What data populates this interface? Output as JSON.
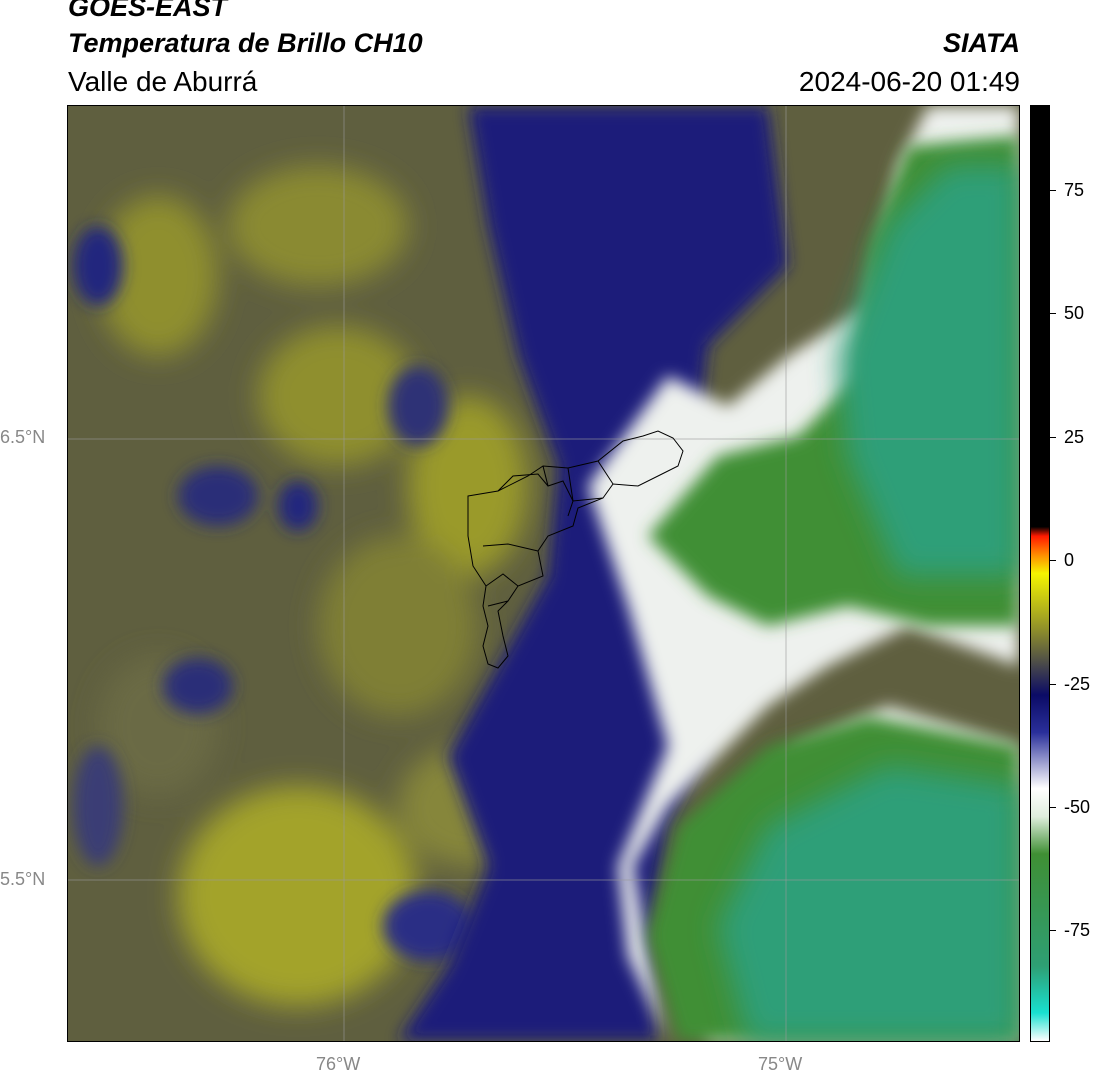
{
  "header": {
    "satellite": "GOES-EAST",
    "product": "Temperatura de Brillo CH10",
    "region": "Valle de Aburrá",
    "agency": "SIATA",
    "datetime": "2024-06-20 01:49"
  },
  "map": {
    "lat_labels": [
      "6.5°N",
      "5.5°N"
    ],
    "lon_labels": [
      "76°W",
      "75°W"
    ],
    "colors": {
      "olive": "#8a8a2e",
      "olive_dark": "#5b5b3d",
      "navy": "#1c1f7a",
      "white": "#f4f6f4",
      "green": "#3f8f34",
      "teal": "#2f9f78"
    }
  },
  "colorbar": {
    "ticks": [
      "75",
      "50",
      "25",
      "0",
      "-25",
      "-50",
      "-75"
    ],
    "stops": [
      "#ffffff",
      "#19e0d0",
      "#2e9f74",
      "#3f8f34",
      "#dfeedd",
      "#ffffff",
      "#2a2f9a",
      "#0b0b66",
      "#8f8f2a",
      "#f5f500",
      "#ff8c00",
      "#ff1a00",
      "#000000",
      "#000000"
    ]
  }
}
